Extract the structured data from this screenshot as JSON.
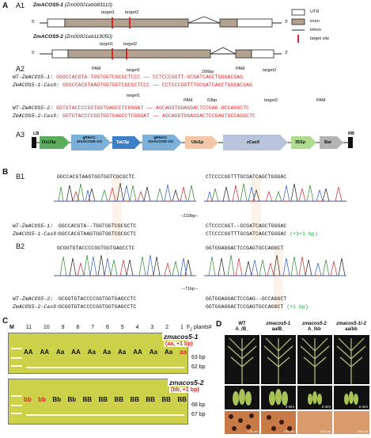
{
  "panel_A": {
    "label": "A",
    "A1": {
      "sub": "A1",
      "gene1_name": "ZmACOS5-1",
      "gene1_id": "(Zm00001eb083110)",
      "gene2_name": "ZmACOS5-2",
      "gene2_id": "(Zm00001eb119050)",
      "target1": "target1",
      "target2": "target2",
      "five": "5'",
      "three": "3'",
      "legend": [
        "UTR",
        "exon",
        "intron",
        "target site"
      ]
    },
    "A2": {
      "sub": "A2",
      "pam": "PAM",
      "target1": "target1",
      "target2": "target2",
      "gap1": "206bp",
      "gap2": "63bp",
      "rows": [
        {
          "name": "WT-ZmACOS5-1:",
          "seq": "GGGCCACGTA-TGGTGGTCGCGCTCCC —— CCTCCCGGTT-GCGATCAGCTGGGACGAG"
        },
        {
          "name": "ZmACOS5-1-Cas9:",
          "seq": "GGGCCACGTAAGTGGTGGTCGCGCTCCC —— CCTCCCGGTTTGCGATCAGCTGGGACGAG"
        },
        {
          "name": "WT-ZmACOS5-2:",
          "seq": "GGTGTACCCCGGTGGTGAGCCTCGGGAT —— AGCAGGTGGAGGACTCCGAG-GCCAGGCTC"
        },
        {
          "name": "ZmACOS5-2-Cas9:",
          "seq": "GGTGTACCCCGGTGGTGAGCCTCGGGAT —— AGCAGGTGGAGGACTCCGAGTGCCAGGCTC"
        }
      ]
    },
    "A3": {
      "sub": "A3",
      "lb": "LB",
      "rb": "RB",
      "parts": [
        "OsU3p",
        "gRNA1-ZmACOS5-1/2",
        "TaU3p",
        "gRNA2-ZmACOS5-1/2",
        "Ubi1p",
        "zCas9",
        "35Sp",
        "Bar"
      ]
    }
  },
  "panel_B": {
    "label": "B",
    "B1": {
      "sub": "B1",
      "ref_left": "GGCCACGTAAGTGGTGGTCGCGCTC",
      "ref_right": "CTCCCCGGTTTGCGATCAGCTGGGAC",
      "gap": "--210bp--",
      "wt_name": "WT-ZmACOS5-1:",
      "wt_left": "GGCCACGTA--TGGTGGTCGCGCTC",
      "wt_right": "CTCCCCGGT--GCGATCAGCTGGGAC",
      "mut_name": "ZmACOS5-1-Cas9:",
      "mut_left": "GGCCACGTAAGTGGTGGTCGCGCTC",
      "mut_right": "CTCCCCGGTTTGCGATCAGCTGGGAC",
      "note": "(+1+1 bp)"
    },
    "B2": {
      "sub": "B2",
      "ref_left": "GCGGTGTACCCCGGTGGTGAGCCTC",
      "ref_right": "GGTGGAGGACTCCGAGTGCCAGGCT",
      "gap": "--71bp--",
      "wt_name": "WT-ZmACOS5-2:",
      "wt_left": "GCGGTGTACCCCGGTGGTGAGCCTC",
      "wt_right": "GGTGGAGGACTCCGAG--GCCAGGCT",
      "mut_name": "ZmACOS5-2-Cas9:",
      "mut_left": "GCGGTGTACCCCGGTGGTGAGCCTC",
      "mut_right": "GGTGGAGGACTCCGAGTGCCAGGCT",
      "note": "(+1 bp)"
    }
  },
  "panel_C": {
    "label": "C",
    "lanes": [
      "M",
      "11",
      "10",
      "9",
      "8",
      "7",
      "6",
      "5",
      "4",
      "3",
      "2",
      "1"
    ],
    "plants_label": "F",
    "plants_sub": "2",
    "plants_suffix": " plants#",
    "gel1_genotypes": [
      "AA",
      "AA",
      "Aa",
      "AA",
      "Aa",
      "Aa",
      "Aa",
      "AA",
      "Aa",
      "Aa",
      "aa"
    ],
    "gel1_title": "zmacos5-1",
    "gel1_note": "(aa, +1 bp)",
    "gel1_sizes": [
      "63 bp",
      "62 bp"
    ],
    "gel2_genotypes": [
      "bb",
      "bb",
      "Bb",
      "Bb",
      "BB",
      "BB",
      "BB",
      "BB",
      "BB",
      "BB",
      "BB"
    ],
    "gel2_title": "zmacos5-2",
    "gel2_note": "(bb, +1 bp)",
    "gel2_sizes": [
      "68 bp",
      "67 bp"
    ]
  },
  "panel_D": {
    "label": "D",
    "cols": [
      {
        "title": "WT",
        "geno": "A_/B_"
      },
      {
        "title": "zmacos5-1",
        "geno": "aa/B_"
      },
      {
        "title": "zmacos5-2",
        "geno": "A_/bb"
      },
      {
        "title": "zmacos5-1/-2",
        "geno": "aa/bb"
      }
    ],
    "scale_small": "2 mm",
    "scale_tiny": "100 μm"
  }
}
